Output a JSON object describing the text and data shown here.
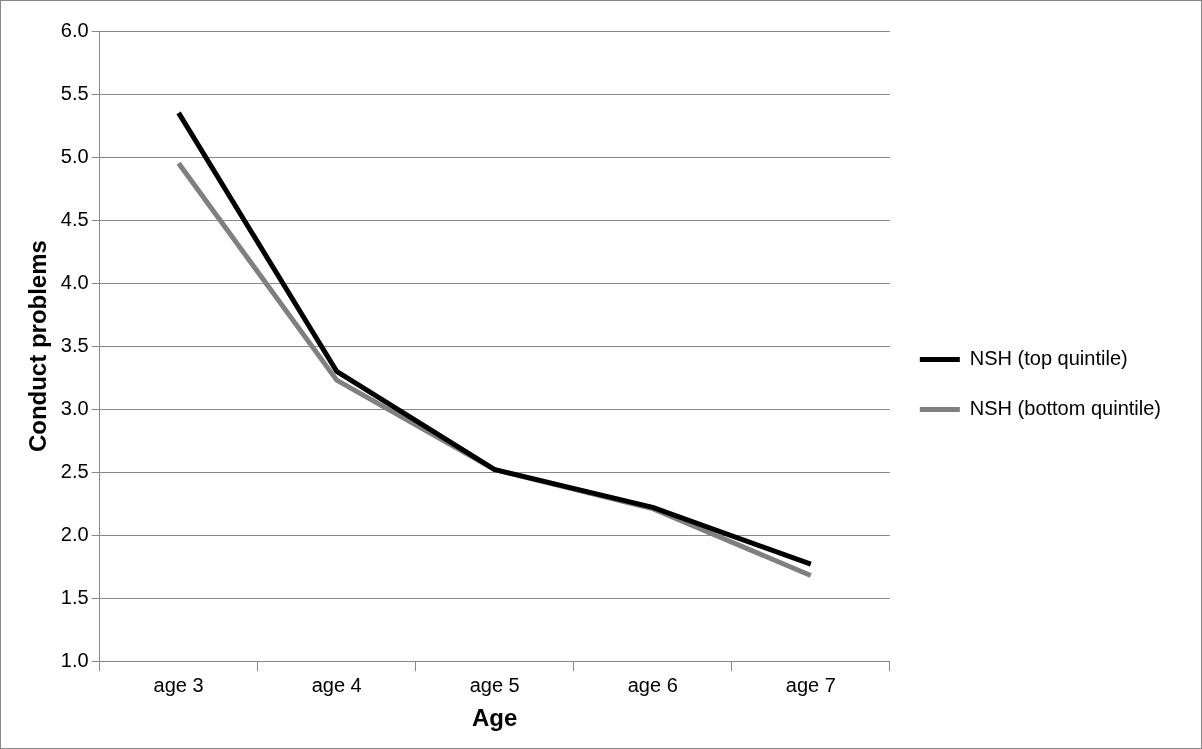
{
  "chart_data": {
    "type": "line",
    "xlabel": "Age",
    "ylabel": "Conduct problems",
    "categories": [
      "age 3",
      "age 4",
      "age 5",
      "age 6",
      "age 7"
    ],
    "series": [
      {
        "name": "NSH (top quintile)",
        "color": "#000000",
        "values": [
          5.35,
          3.3,
          2.52,
          2.22,
          1.77
        ]
      },
      {
        "name": "NSH (bottom quintile)",
        "color": "#808080",
        "values": [
          4.95,
          3.23,
          2.52,
          2.21,
          1.68
        ]
      }
    ],
    "ylim": [
      1.0,
      6.0
    ],
    "yticks": [
      {
        "value": 1,
        "label": "1.0"
      },
      {
        "value": 1.5,
        "label": "1.5"
      },
      {
        "value": 2,
        "label": "2.0"
      },
      {
        "value": 2.5,
        "label": "2.5"
      },
      {
        "value": 3,
        "label": "3.0"
      },
      {
        "value": 3.5,
        "label": "3.5"
      },
      {
        "value": 4,
        "label": "4.0"
      },
      {
        "value": 4.5,
        "label": "4.5"
      },
      {
        "value": 5,
        "label": "5.0"
      },
      {
        "value": 5.5,
        "label": "5.5"
      },
      {
        "value": 6,
        "label": "6.0"
      }
    ],
    "grid": "y",
    "legend": "right",
    "marker": "none",
    "line_style": "solid"
  }
}
